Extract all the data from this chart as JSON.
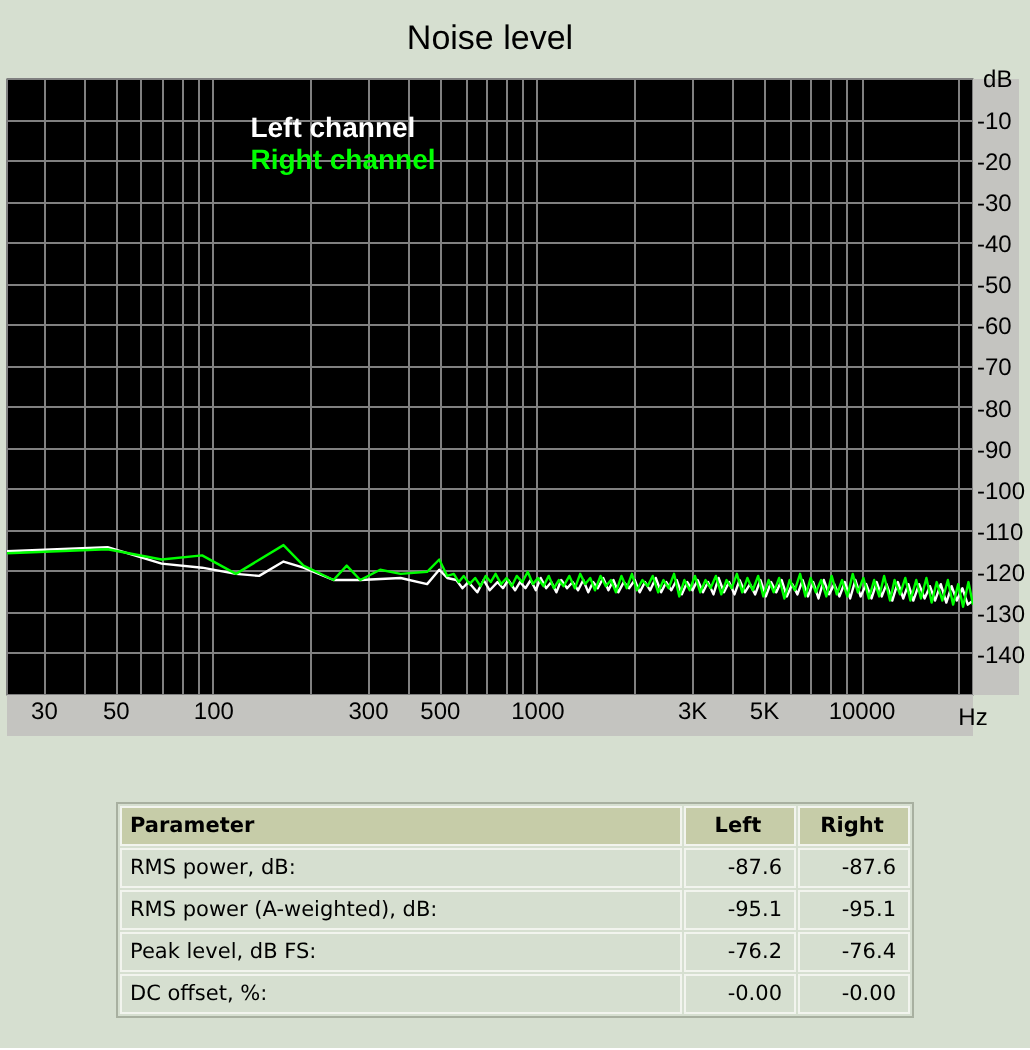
{
  "chart_data": [
    {
      "type": "line",
      "title": "Noise level",
      "xlabel": "Hz",
      "ylabel": "dB",
      "log": "x",
      "xlim": [
        23,
        22000
      ],
      "ylim": [
        -150,
        0
      ],
      "xticks": [
        30,
        {
          "value": 40,
          "label": null
        },
        50,
        {
          "value": 60,
          "label": null
        },
        {
          "value": 70,
          "label": null
        },
        {
          "value": 80,
          "label": null
        },
        {
          "value": 90,
          "label": null
        },
        100,
        {
          "value": 200,
          "label": null
        },
        300,
        {
          "value": 400,
          "label": null
        },
        500,
        {
          "value": 600,
          "label": null
        },
        {
          "value": 700,
          "label": null
        },
        {
          "value": 800,
          "label": null
        },
        {
          "value": 900,
          "label": null
        },
        1000,
        {
          "value": 2000,
          "label": null
        },
        {
          "value": 3000,
          "label": "3K"
        },
        {
          "value": 4000,
          "label": null
        },
        {
          "value": 5000,
          "label": "5K"
        },
        {
          "value": 6000,
          "label": null
        },
        {
          "value": 7000,
          "label": null
        },
        {
          "value": 8000,
          "label": null
        },
        {
          "value": 9000,
          "label": null
        },
        10000,
        {
          "value": 20000,
          "label": null
        }
      ],
      "yticks": [
        -10,
        -20,
        -30,
        -40,
        -50,
        -60,
        -70,
        -80,
        -90,
        -100,
        -110,
        -120,
        -130,
        -140
      ],
      "grid": true,
      "legend": "top left",
      "series": [
        {
          "name": "Left channel",
          "color": "#ffffff",
          "x": [
            23,
            47,
            69,
            92,
            117,
            138,
            164,
            189,
            234,
            283,
            377,
            455,
            496,
            525,
            560,
            585,
            610,
            650,
            680,
            710,
            750,
            780,
            810,
            850,
            880,
            915,
            950,
            985,
            1020,
            1060,
            1100,
            1140,
            1180,
            1230,
            1280,
            1330,
            1380,
            1430,
            1480,
            1530,
            1590,
            1650,
            1710,
            1770,
            1840,
            1910,
            1990,
            2060,
            2140,
            2220,
            2310,
            2400,
            2490,
            2580,
            2680,
            2780,
            2890,
            3000,
            3110,
            3230,
            3350,
            3480,
            3610,
            3750,
            3890,
            4040,
            4190,
            4350,
            4510,
            4680,
            4860,
            5050,
            5240,
            5440,
            5650,
            5860,
            6090,
            6320,
            6560,
            6810,
            7070,
            7340,
            7620,
            7910,
            8210,
            8520,
            8850,
            9190,
            9540,
            9900,
            10300,
            10700,
            11100,
            11500,
            11900,
            12400,
            12900,
            13400,
            13900,
            14400,
            15000,
            15600,
            16200,
            16800,
            17500,
            18200,
            18900,
            19600,
            20400,
            21200,
            22000
          ],
          "values": [
            -115,
            -114,
            -118,
            -119,
            -120.5,
            -121,
            -117.5,
            -119,
            -122,
            -122,
            -121.5,
            -123,
            -119.5,
            -121.5,
            -122,
            -124,
            -122.5,
            -125,
            -122,
            -124.5,
            -122.5,
            -124,
            -122,
            -124.5,
            -122.5,
            -124,
            -122,
            -124.5,
            -121.5,
            -124,
            -122.5,
            -125,
            -122,
            -124,
            -122.5,
            -124.5,
            -122,
            -125,
            -122.5,
            -124,
            -121.5,
            -124.5,
            -122,
            -125,
            -122.5,
            -124,
            -122,
            -125,
            -122.5,
            -124.5,
            -121.5,
            -125,
            -122.5,
            -124.5,
            -122,
            -125.5,
            -122.5,
            -124.5,
            -122,
            -125,
            -122.5,
            -125.5,
            -121.5,
            -125,
            -122.5,
            -125.5,
            -122,
            -125,
            -123,
            -125.5,
            -122,
            -126,
            -122.5,
            -125,
            -122,
            -126,
            -123,
            -125.5,
            -122,
            -126,
            -122.5,
            -126.5,
            -122,
            -125.5,
            -123,
            -126,
            -122.5,
            -126.5,
            -122,
            -126,
            -123,
            -126.5,
            -122.5,
            -126,
            -123,
            -127,
            -122.5,
            -126.5,
            -123,
            -127,
            -123,
            -126.5,
            -123.5,
            -127,
            -123,
            -127.5,
            -123.5,
            -127,
            -124,
            -128,
            -127
          ]
        },
        {
          "name": "Right channel",
          "color": "#00ff00",
          "x": [
            23,
            47,
            69,
            92,
            117,
            164,
            189,
            234,
            257,
            283,
            326,
            377,
            455,
            496,
            525,
            550,
            570,
            590,
            615,
            640,
            665,
            690,
            715,
            740,
            770,
            800,
            830,
            860,
            895,
            930,
            965,
            1000,
            1040,
            1080,
            1120,
            1160,
            1200,
            1250,
            1300,
            1350,
            1400,
            1450,
            1500,
            1560,
            1620,
            1680,
            1740,
            1810,
            1880,
            1950,
            2020,
            2100,
            2180,
            2260,
            2350,
            2440,
            2530,
            2630,
            2730,
            2830,
            2940,
            3050,
            3170,
            3290,
            3410,
            3540,
            3680,
            3820,
            3960,
            4110,
            4270,
            4430,
            4600,
            4780,
            4960,
            5150,
            5340,
            5550,
            5760,
            5980,
            6200,
            6440,
            6690,
            6940,
            7200,
            7480,
            7760,
            8060,
            8360,
            8680,
            9010,
            9360,
            9710,
            10100,
            10500,
            10900,
            11300,
            11700,
            12200,
            12600,
            13100,
            13600,
            14100,
            14700,
            15200,
            15800,
            16400,
            17000,
            17700,
            18400,
            19100,
            19800,
            20500,
            21300,
            22000
          ],
          "values": [
            -115.5,
            -114.5,
            -117,
            -116,
            -120.5,
            -113.5,
            -118.5,
            -122,
            -118.5,
            -122,
            -119.5,
            -120.5,
            -120,
            -117,
            -121,
            -120.5,
            -122.5,
            -121,
            -123,
            -121.5,
            -123.5,
            -121,
            -122.5,
            -120.5,
            -123,
            -121.5,
            -123.5,
            -121,
            -122.5,
            -120,
            -123,
            -121.5,
            -123.5,
            -121,
            -124,
            -122,
            -123.5,
            -121,
            -124,
            -120.5,
            -123,
            -121.5,
            -124.5,
            -121,
            -123.5,
            -122,
            -125,
            -121,
            -124,
            -120.5,
            -124.5,
            -122,
            -123.5,
            -121,
            -125,
            -122,
            -124,
            -120.5,
            -126,
            -122,
            -124.5,
            -121,
            -125,
            -122,
            -124,
            -121,
            -125.5,
            -122,
            -124,
            -120.5,
            -125,
            -121.5,
            -124.5,
            -121,
            -126,
            -122,
            -125,
            -121.5,
            -126.5,
            -122,
            -124.5,
            -120.5,
            -126,
            -121.5,
            -125,
            -122,
            -126,
            -121,
            -125.5,
            -122,
            -126,
            -120.5,
            -125,
            -121.5,
            -126.5,
            -122,
            -126,
            -121,
            -127,
            -122,
            -125.5,
            -121.5,
            -127,
            -122,
            -126.5,
            -121.5,
            -127.5,
            -122.5,
            -127,
            -122,
            -128,
            -123,
            -128.5,
            -122.5,
            -128
          ]
        }
      ]
    },
    {
      "type": "other",
      "ylabel": "Parameter",
      "data_labels": true,
      "annotations": [
        ":"
      ],
      "categories": [
        "RMS power, dB",
        "RMS power (A-weighted), dB",
        "Peak level, dB FS",
        "DC offset, %"
      ],
      "series": [
        {
          "name": "Left",
          "values": [
            -87.6,
            -95.1,
            -76.2,
            -0.0
          ],
          "value_labels": [
            "-87.6",
            "-95.1",
            "-76.2",
            "-0.00"
          ]
        },
        {
          "name": "Right",
          "values": [
            -87.6,
            -95.1,
            -76.4,
            -0.0
          ],
          "value_labels": [
            "-87.6",
            "-95.1",
            "-76.4",
            "-0.00"
          ]
        }
      ]
    }
  ]
}
